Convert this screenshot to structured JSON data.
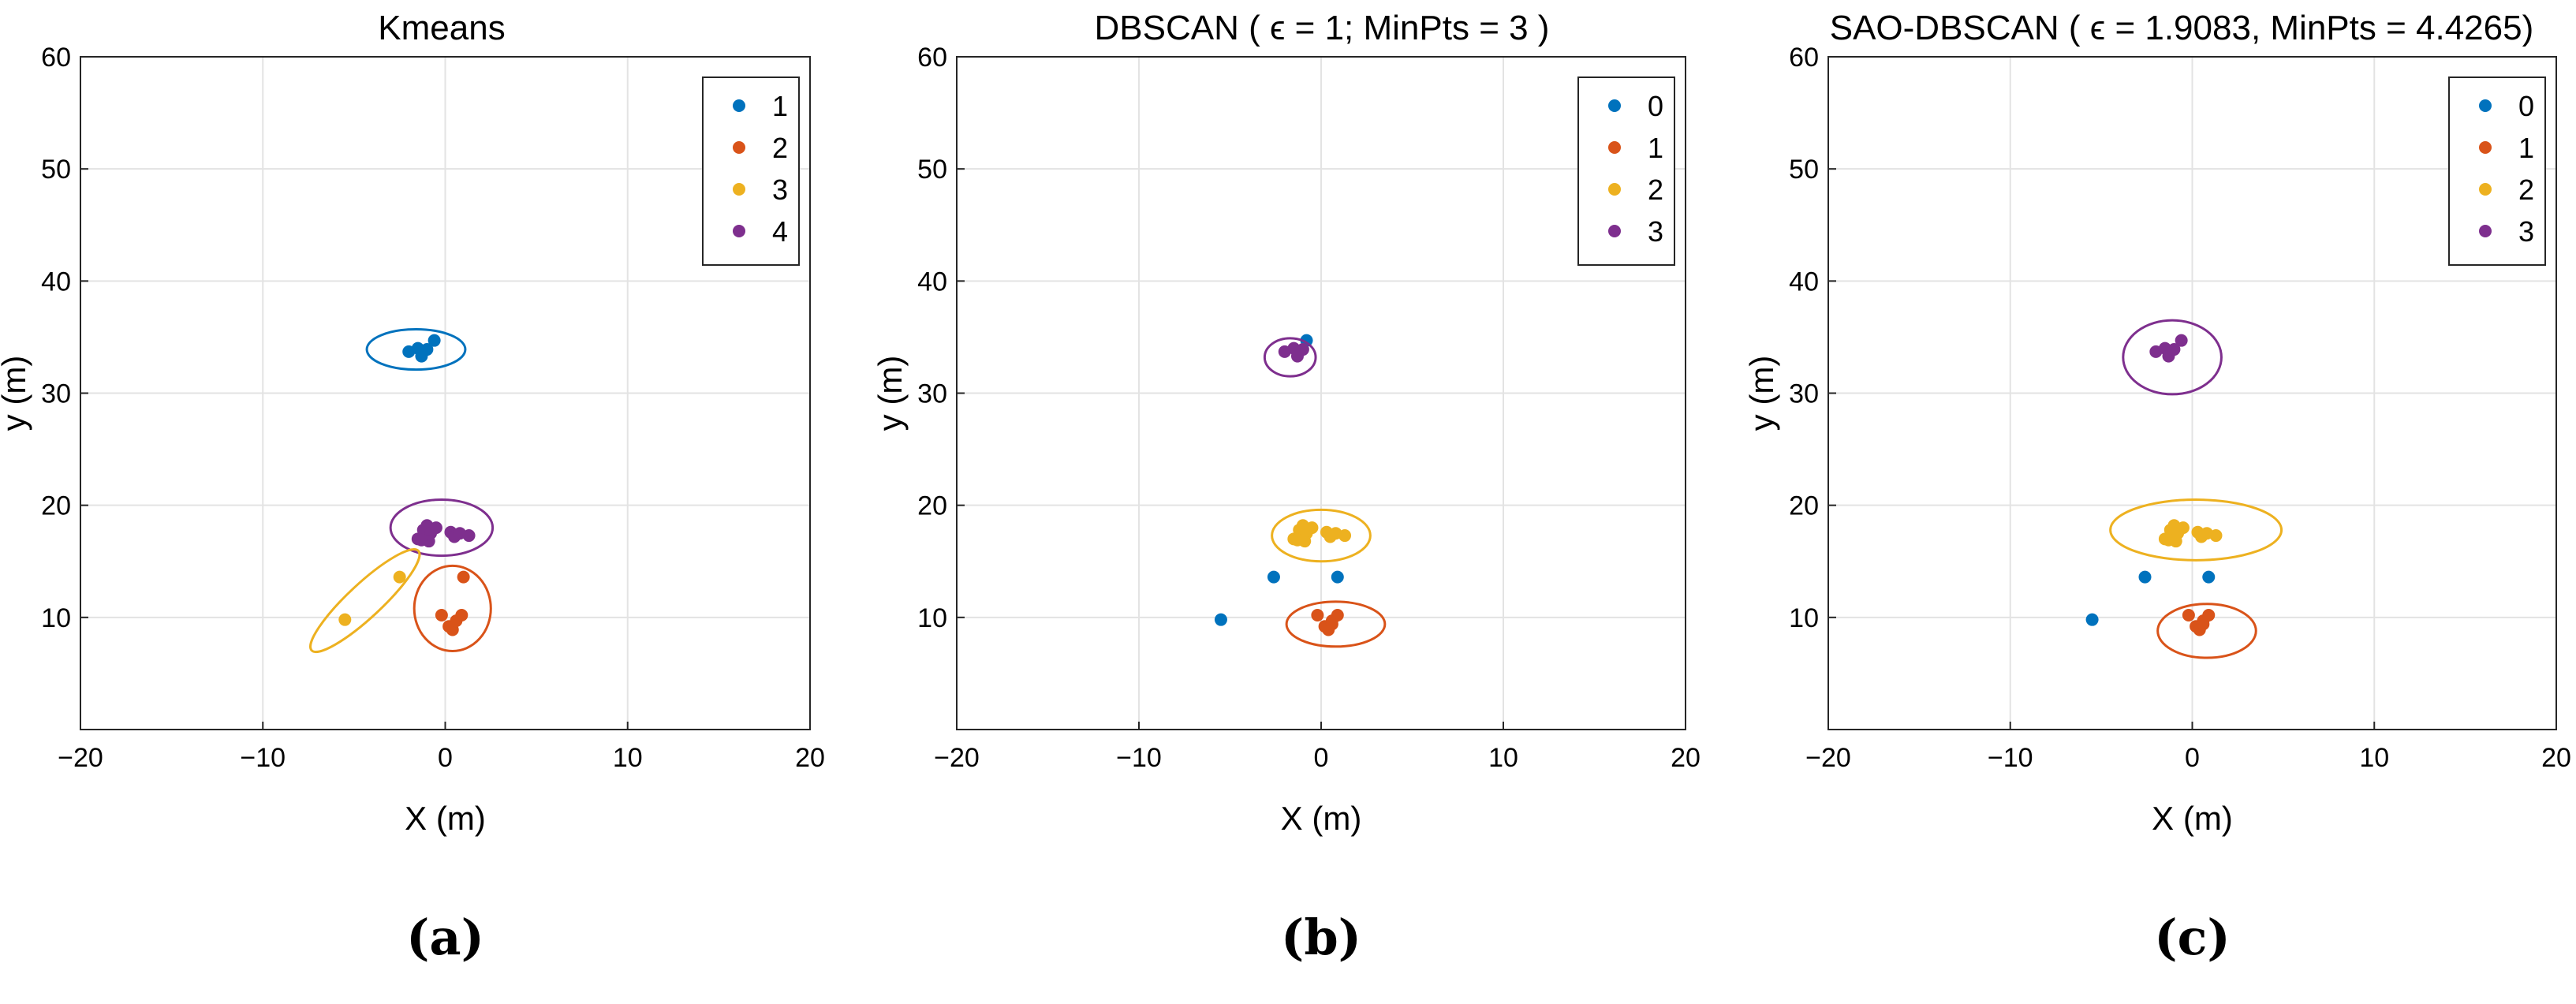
{
  "chart_data": [
    {
      "type": "scatter",
      "title": "Kmeans",
      "panel_label": "(a)",
      "xlabel": "X (m)",
      "ylabel": "y (m)",
      "xlim": [
        -20,
        20
      ],
      "ylim": [
        0,
        60
      ],
      "xticks": [
        -20,
        -10,
        0,
        10,
        20
      ],
      "yticks": [
        10,
        20,
        30,
        40,
        50,
        60
      ],
      "grid": true,
      "legend_position": "top-right",
      "series": [
        {
          "name": "1",
          "color": "#0072BD",
          "points": [
            [
              -2.0,
              33.7
            ],
            [
              -1.3,
              33.3
            ],
            [
              -1.0,
              33.9
            ],
            [
              -0.6,
              34.7
            ],
            [
              -1.5,
              34.0
            ]
          ]
        },
        {
          "name": "2",
          "color": "#D95319",
          "points": [
            [
              -0.2,
              10.2
            ],
            [
              0.2,
              9.2
            ],
            [
              0.4,
              8.9
            ],
            [
              0.6,
              9.7
            ],
            [
              0.9,
              10.2
            ],
            [
              1.0,
              13.6
            ]
          ]
        },
        {
          "name": "3",
          "color": "#EDB120",
          "points": [
            [
              -2.5,
              13.6
            ],
            [
              -5.5,
              9.8
            ]
          ]
        },
        {
          "name": "4",
          "color": "#7E2F8E",
          "points": [
            [
              -1.5,
              17.0
            ],
            [
              -1.2,
              17.8
            ],
            [
              -1.0,
              18.2
            ],
            [
              -0.8,
              17.5
            ],
            [
              -0.5,
              18.0
            ],
            [
              -0.9,
              16.8
            ],
            [
              0.3,
              17.6
            ],
            [
              0.5,
              17.2
            ],
            [
              0.8,
              17.5
            ],
            [
              1.3,
              17.3
            ],
            [
              -1.3,
              16.9
            ]
          ]
        }
      ],
      "cluster_ellipses": [
        {
          "series": "1",
          "center": [
            -1.6,
            33.9
          ],
          "rx": 2.7,
          "ry": 1.8
        },
        {
          "series": "4",
          "center": [
            -0.2,
            18.0
          ],
          "rx": 2.8,
          "ry": 2.5
        },
        {
          "series": "2",
          "center": [
            0.4,
            10.8
          ],
          "rx": 2.1,
          "ry": 3.8
        },
        {
          "series": "3",
          "center": [
            -4.4,
            11.5
          ],
          "rx": 4.0,
          "ry": 1.5,
          "rotation": 43
        }
      ]
    },
    {
      "type": "scatter",
      "title": "DBSCAN (  ϵ = 1; MinPts = 3 )",
      "panel_label": "(b)",
      "xlabel": "X (m)",
      "ylabel": "y (m)",
      "xlim": [
        -20,
        20
      ],
      "ylim": [
        0,
        60
      ],
      "xticks": [
        -20,
        -10,
        0,
        10,
        20
      ],
      "yticks": [
        10,
        20,
        30,
        40,
        50,
        60
      ],
      "grid": true,
      "legend_position": "top-right",
      "series": [
        {
          "name": "0",
          "color": "#0072BD",
          "points": [
            [
              -0.8,
              34.7
            ],
            [
              -2.6,
              13.6
            ],
            [
              0.9,
              13.6
            ],
            [
              -5.5,
              9.8
            ]
          ]
        },
        {
          "name": "1",
          "color": "#D95319",
          "points": [
            [
              -0.2,
              10.2
            ],
            [
              0.2,
              9.2
            ],
            [
              0.4,
              8.9
            ],
            [
              0.6,
              9.7
            ],
            [
              0.9,
              10.2
            ],
            [
              0.6,
              9.4
            ]
          ]
        },
        {
          "name": "2",
          "color": "#EDB120",
          "points": [
            [
              -1.5,
              17.0
            ],
            [
              -1.2,
              17.8
            ],
            [
              -1.0,
              18.2
            ],
            [
              -0.8,
              17.5
            ],
            [
              -0.5,
              18.0
            ],
            [
              -0.9,
              16.8
            ],
            [
              0.3,
              17.6
            ],
            [
              0.5,
              17.2
            ],
            [
              0.8,
              17.5
            ],
            [
              1.3,
              17.3
            ],
            [
              -1.3,
              16.9
            ]
          ]
        },
        {
          "name": "3",
          "color": "#7E2F8E",
          "points": [
            [
              -2.0,
              33.7
            ],
            [
              -1.3,
              33.3
            ],
            [
              -1.0,
              33.9
            ],
            [
              -1.5,
              34.0
            ]
          ]
        }
      ],
      "cluster_ellipses": [
        {
          "series": "3",
          "center": [
            -1.7,
            33.2
          ],
          "rx": 1.4,
          "ry": 1.7
        },
        {
          "series": "2",
          "center": [
            0.0,
            17.3
          ],
          "rx": 2.7,
          "ry": 2.3
        },
        {
          "series": "1",
          "center": [
            0.8,
            9.4
          ],
          "rx": 2.7,
          "ry": 2.0
        }
      ]
    },
    {
      "type": "scatter",
      "title": "SAO-DBSCAN  (  ϵ = 1.9083, MinPts = 4.4265)",
      "panel_label": "(c)",
      "xlabel": "X (m)",
      "ylabel": "y (m)",
      "xlim": [
        -20,
        20
      ],
      "ylim": [
        0,
        60
      ],
      "xticks": [
        -20,
        -10,
        0,
        10,
        20
      ],
      "yticks": [
        10,
        20,
        30,
        40,
        50,
        60
      ],
      "grid": true,
      "legend_position": "top-right",
      "series": [
        {
          "name": "0",
          "color": "#0072BD",
          "points": [
            [
              -2.6,
              13.6
            ],
            [
              0.9,
              13.6
            ],
            [
              -5.5,
              9.8
            ]
          ]
        },
        {
          "name": "1",
          "color": "#D95319",
          "points": [
            [
              -0.2,
              10.2
            ],
            [
              0.2,
              9.2
            ],
            [
              0.4,
              8.9
            ],
            [
              0.6,
              9.7
            ],
            [
              0.9,
              10.2
            ],
            [
              0.6,
              9.4
            ]
          ]
        },
        {
          "name": "2",
          "color": "#EDB120",
          "points": [
            [
              -1.5,
              17.0
            ],
            [
              -1.2,
              17.8
            ],
            [
              -1.0,
              18.2
            ],
            [
              -0.8,
              17.5
            ],
            [
              -0.5,
              18.0
            ],
            [
              -0.9,
              16.8
            ],
            [
              0.3,
              17.6
            ],
            [
              0.5,
              17.2
            ],
            [
              0.8,
              17.5
            ],
            [
              1.3,
              17.3
            ],
            [
              -1.3,
              16.9
            ]
          ]
        },
        {
          "name": "3",
          "color": "#7E2F8E",
          "points": [
            [
              -2.0,
              33.7
            ],
            [
              -1.3,
              33.3
            ],
            [
              -1.0,
              33.9
            ],
            [
              -0.6,
              34.7
            ],
            [
              -1.5,
              34.0
            ]
          ]
        }
      ],
      "cluster_ellipses": [
        {
          "series": "3",
          "center": [
            -1.1,
            33.2
          ],
          "rx": 2.7,
          "ry": 3.3
        },
        {
          "series": "2",
          "center": [
            0.2,
            17.8
          ],
          "rx": 4.7,
          "ry": 2.7
        },
        {
          "series": "1",
          "center": [
            0.8,
            8.8
          ],
          "rx": 2.7,
          "ry": 2.4
        }
      ]
    }
  ]
}
